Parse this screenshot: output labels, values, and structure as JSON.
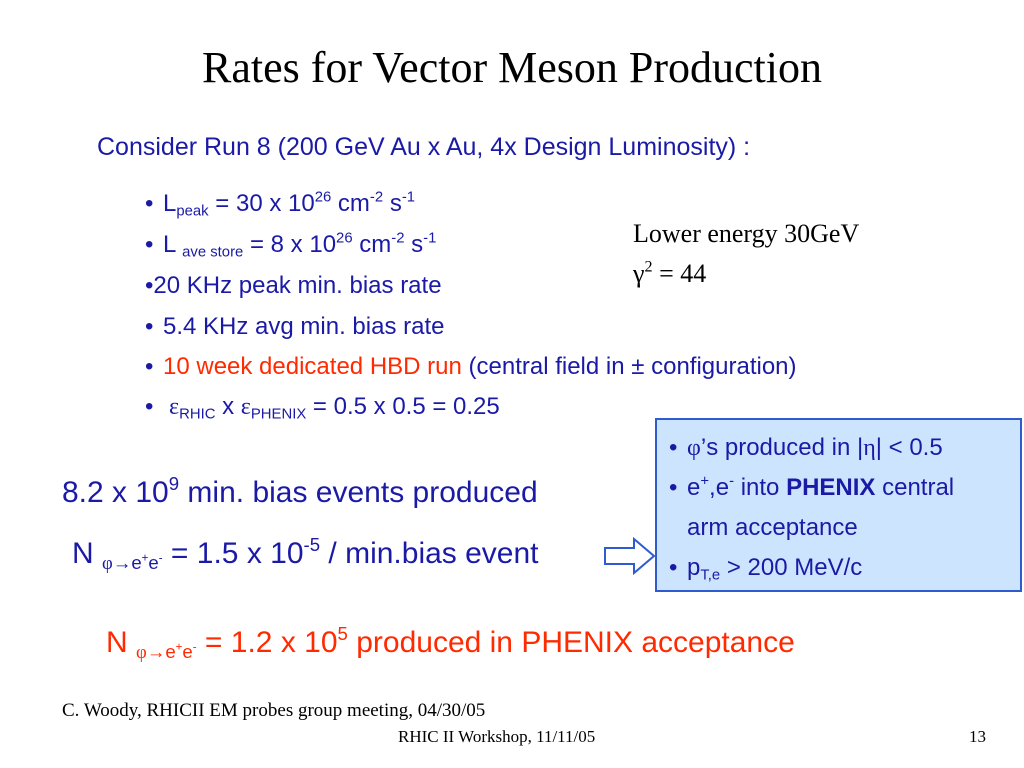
{
  "slide": {
    "title": "Rates for Vector Meson Production",
    "intro": "Consider Run 8 (200 GeV Au x Au, 4x Design Luminosity) :",
    "bullets": {
      "b1": {
        "lead": "L",
        "sub": "peak",
        "mid": " = 30 x 10",
        "exp1": "26",
        "unit1": " cm",
        "exp2": "-2",
        "unit2": " s",
        "exp3": "-1"
      },
      "b2": {
        "lead": "L ",
        "sub": "ave store",
        "mid": " = 8 x 10",
        "exp1": "26",
        "unit1": " cm",
        "exp2": "-2",
        "unit2": " s",
        "exp3": "-1"
      },
      "b3": {
        "text": "20 KHz peak min. bias rate"
      },
      "b4": {
        "text": "5.4 KHz avg min. bias rate"
      },
      "b5": {
        "highlight": "10 week dedicated HBD run",
        "rest": " (central field in ± configuration)"
      },
      "b6": {
        "eps1": "ε",
        "sub1": "RHIC",
        "x": " x ",
        "eps2": "ε",
        "sub2": "PHENIX",
        "rest": " = 0.5 x 0.5 = 0.25"
      }
    },
    "side_note": {
      "line1": "Lower energy 30GeV",
      "gamma": "γ",
      "gamma_exp": "2",
      "line2_rest": " = 44"
    },
    "events": {
      "lead": "8.2 x 10",
      "exp": "9",
      "rest": " min. bias events produced"
    },
    "n_per_event": {
      "N": "N ",
      "phi": "φ",
      "arrow": "→",
      "e": "e",
      "ep": "+",
      "e2": "e",
      "em": "-",
      "mid": " = 1.5 x 10",
      "exp": "-5",
      "rest": " / min.bias event"
    },
    "callout": {
      "l1": {
        "phi": "φ",
        "text1": "’s produced in |",
        "eta": "η",
        "text2": "| < 0.5"
      },
      "l2": {
        "e": "e",
        "ep": "+",
        "comma": ",e",
        "em": "-",
        "into": " into ",
        "phenix": "PHENIX",
        "rest": " central"
      },
      "l3": {
        "text": "arm acceptance"
      },
      "l4": {
        "p": "p",
        "sub": "T,e",
        "rest": " > 200 MeV/c"
      }
    },
    "result": {
      "N": "N ",
      "phi": "φ",
      "arrow": "→",
      "e": "e",
      "ep": "+",
      "e2": "e",
      "em": "-",
      "mid": " = 1.2 x 10",
      "exp": "5",
      "rest": "  produced in PHENIX acceptance"
    },
    "footer": {
      "credit": "C. Woody, RHICII EM probes group meeting, 04/30/05",
      "workshop": "RHIC II Workshop, 11/11/05",
      "page": "13"
    }
  }
}
